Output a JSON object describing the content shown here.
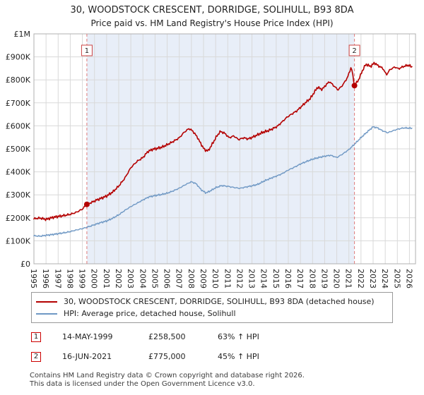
{
  "header": {
    "title": "30, WOODSTOCK CRESCENT, DORRIDGE, SOLIHULL, B93 8DA",
    "subtitle": "Price paid vs. HM Land Registry's House Price Index (HPI)"
  },
  "chart_data": {
    "type": "line",
    "x_range": [
      1995,
      2026.5
    ],
    "y_range": [
      0,
      1000
    ],
    "y_unit": "GBP thousands",
    "y_tick_labels": [
      "£0",
      "£100K",
      "£200K",
      "£300K",
      "£400K",
      "£500K",
      "£600K",
      "£700K",
      "£800K",
      "£900K",
      "£1M"
    ],
    "x_ticks": [
      1995,
      1996,
      1997,
      1998,
      1999,
      2000,
      2001,
      2002,
      2003,
      2004,
      2005,
      2006,
      2007,
      2008,
      2009,
      2010,
      2011,
      2012,
      2013,
      2014,
      2015,
      2016,
      2017,
      2018,
      2019,
      2020,
      2021,
      2022,
      2023,
      2024,
      2025,
      2026
    ],
    "grid": true,
    "legend_position": "bottom",
    "shade_region": [
      1999.37,
      2021.46
    ],
    "shade_color": "#e8eef8",
    "series": [
      {
        "name": "30, WOODSTOCK CRESCENT, DORRIDGE, SOLIHULL, B93 8DA (detached house)",
        "color": "#b40000",
        "width": 1.6,
        "x": [
          1995.0,
          1995.5,
          1996.0,
          1996.5,
          1997.0,
          1997.5,
          1998.0,
          1998.5,
          1999.0,
          1999.37,
          1999.8,
          2000.2,
          2000.7,
          2001.0,
          2001.5,
          2002.0,
          2002.5,
          2003.0,
          2003.5,
          2004.0,
          2004.4,
          2004.8,
          2005.2,
          2005.6,
          2006.0,
          2006.5,
          2007.0,
          2007.4,
          2007.8,
          2008.1,
          2008.5,
          2008.8,
          2009.1,
          2009.4,
          2009.8,
          2010.1,
          2010.4,
          2010.8,
          2011.1,
          2011.5,
          2011.9,
          2012.3,
          2012.7,
          2013.1,
          2013.5,
          2013.9,
          2014.3,
          2014.7,
          2015.1,
          2015.5,
          2015.9,
          2016.3,
          2016.7,
          2017.0,
          2017.4,
          2017.8,
          2018.1,
          2018.4,
          2018.8,
          2019.1,
          2019.4,
          2019.8,
          2020.1,
          2020.5,
          2020.9,
          2021.2,
          2021.46,
          2021.8,
          2022.1,
          2022.4,
          2022.8,
          2023.1,
          2023.4,
          2023.8,
          2024.1,
          2024.4,
          2024.8,
          2025.1,
          2025.5,
          2025.9,
          2026.2
        ],
        "values": [
          196,
          199,
          193,
          201,
          206,
          210,
          215,
          224,
          238,
          258.5,
          268,
          278,
          288,
          295,
          312,
          338,
          372,
          418,
          445,
          462,
          488,
          498,
          502,
          508,
          518,
          532,
          548,
          572,
          588,
          578,
          550,
          520,
          495,
          492,
          528,
          556,
          576,
          566,
          548,
          556,
          540,
          548,
          543,
          552,
          562,
          572,
          578,
          587,
          598,
          618,
          638,
          652,
          665,
          680,
          700,
          718,
          742,
          768,
          758,
          778,
          792,
          772,
          756,
          778,
          812,
          858,
          775,
          800,
          838,
          868,
          858,
          874,
          862,
          850,
          822,
          845,
          856,
          848,
          858,
          864,
          856
        ]
      },
      {
        "name": "HPI: Average price, detached house, Solihull",
        "color": "#6f98c4",
        "width": 1.4,
        "x": [
          1995.0,
          1995.5,
          1996.0,
          1996.5,
          1997.0,
          1997.5,
          1998.0,
          1998.5,
          1999.0,
          1999.5,
          2000.0,
          2000.5,
          2001.0,
          2001.5,
          2002.0,
          2002.5,
          2003.0,
          2003.5,
          2004.0,
          2004.5,
          2005.0,
          2005.5,
          2006.0,
          2006.5,
          2007.0,
          2007.5,
          2008.0,
          2008.4,
          2008.8,
          2009.2,
          2009.6,
          2010.0,
          2010.5,
          2011.0,
          2011.5,
          2012.0,
          2012.5,
          2013.0,
          2013.5,
          2014.0,
          2014.5,
          2015.0,
          2015.5,
          2016.0,
          2016.5,
          2017.0,
          2017.5,
          2018.0,
          2018.5,
          2019.0,
          2019.5,
          2020.0,
          2020.5,
          2021.0,
          2021.5,
          2022.0,
          2022.5,
          2023.0,
          2023.4,
          2023.8,
          2024.2,
          2024.6,
          2025.0,
          2025.5,
          2026.0,
          2026.2
        ],
        "values": [
          122,
          120,
          124,
          127,
          131,
          135,
          140,
          147,
          153,
          161,
          170,
          179,
          186,
          198,
          213,
          232,
          249,
          263,
          278,
          291,
          297,
          301,
          307,
          317,
          329,
          344,
          357,
          348,
          322,
          308,
          318,
          331,
          340,
          337,
          332,
          328,
          334,
          339,
          346,
          360,
          371,
          381,
          392,
          408,
          420,
          434,
          445,
          455,
          462,
          468,
          472,
          462,
          478,
          497,
          522,
          549,
          573,
          596,
          590,
          578,
          570,
          578,
          585,
          591,
          590,
          589
        ]
      }
    ],
    "sales": [
      {
        "n": "1",
        "x": 1999.37,
        "y": 258.5
      },
      {
        "n": "2",
        "x": 2021.46,
        "y": 775
      }
    ]
  },
  "annotations": [
    {
      "num": "1",
      "date": "14-MAY-1999",
      "price": "£258,500",
      "hpi": "63% ↑ HPI"
    },
    {
      "num": "2",
      "date": "16-JUN-2021",
      "price": "£775,000",
      "hpi": "45% ↑ HPI"
    }
  ],
  "footer": {
    "line1": "Contains HM Land Registry data © Crown copyright and database right 2026.",
    "line2": "This data is licensed under the Open Government Licence v3.0."
  }
}
